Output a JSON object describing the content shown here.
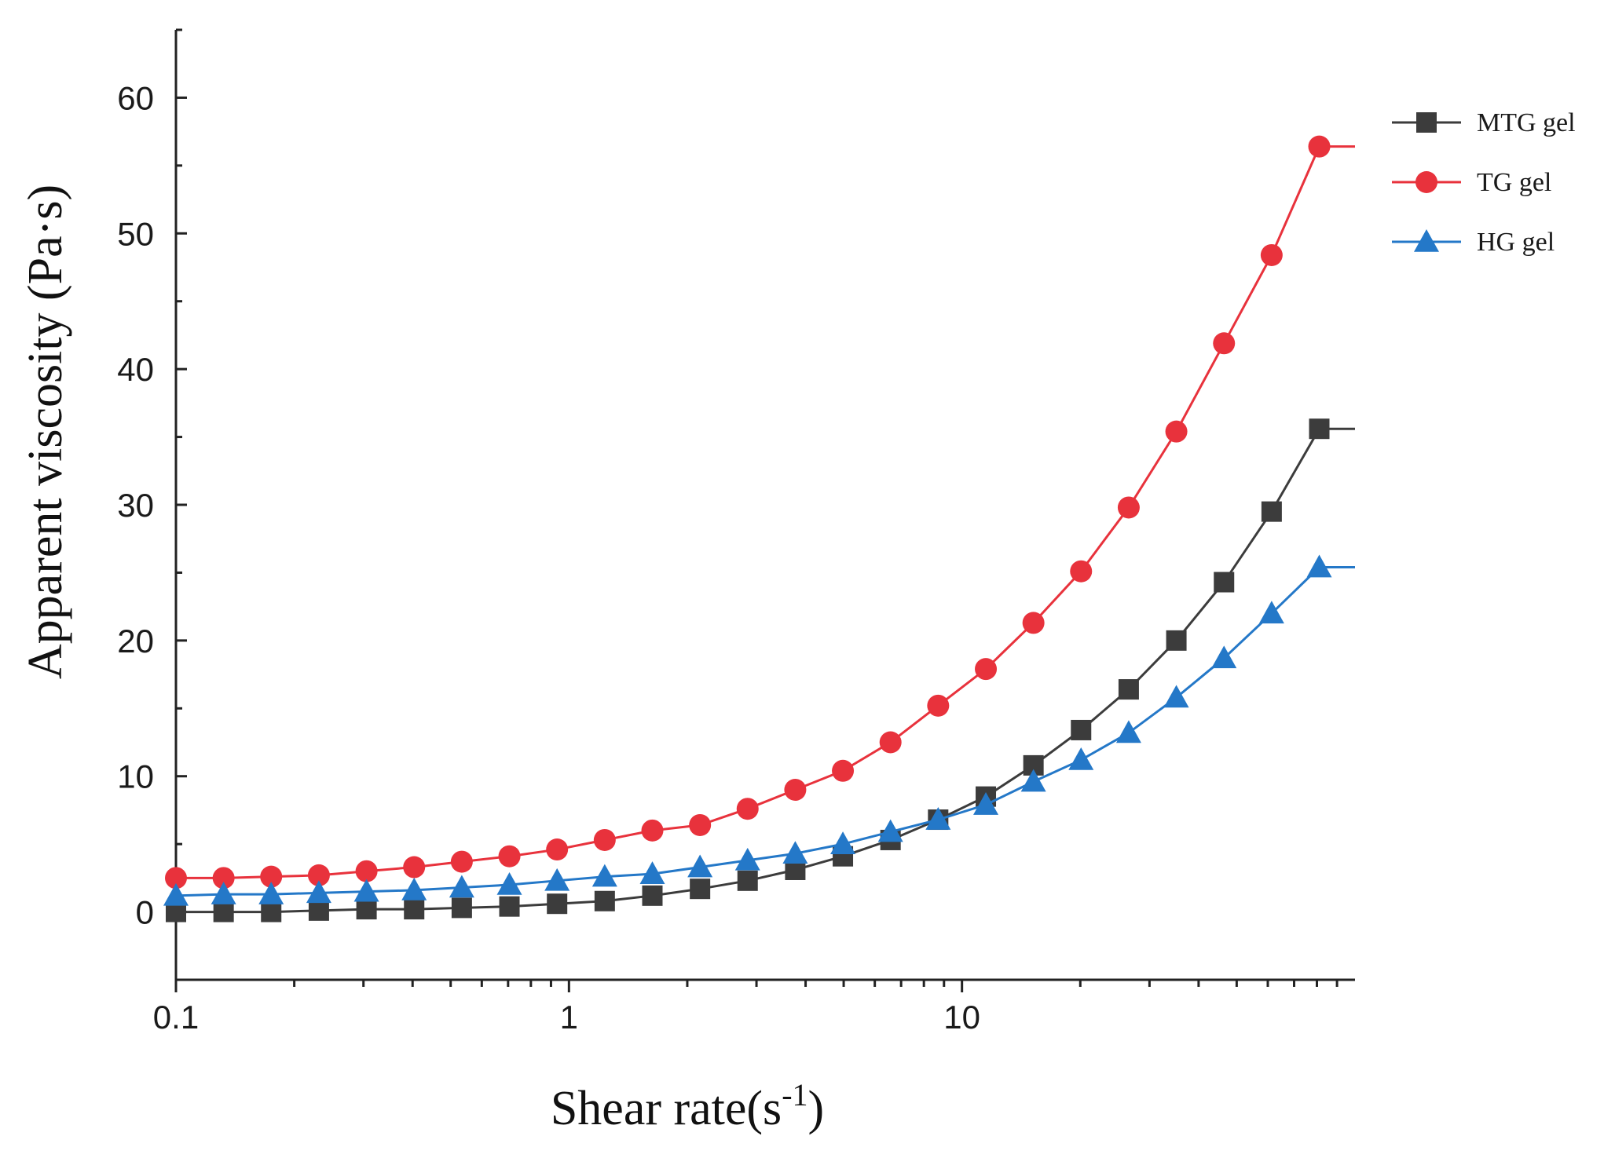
{
  "chart_data": {
    "type": "line",
    "title": "",
    "xlabel": "Shear rate(s",
    "xlabel_sup": "-1",
    "xlabel_close": ")",
    "ylabel": "Apparent viscosity (Pa·s)",
    "xscale": "log",
    "xlim": [
      0.1,
      100
    ],
    "ylim": [
      -5,
      65
    ],
    "x_ticks": [
      0.1,
      1,
      10
    ],
    "x_tick_labels": [
      "0.1",
      "1",
      "10"
    ],
    "y_ticks": [
      0,
      10,
      20,
      30,
      40,
      50,
      60
    ],
    "y_tick_labels": [
      "0",
      "10",
      "20",
      "30",
      "40",
      "50",
      "60"
    ],
    "legend_position": "top-right",
    "x": [
      0.1,
      0.1322,
      0.1747,
      0.231,
      0.3054,
      0.4037,
      0.5337,
      0.7055,
      0.9327,
      1.233,
      1.63,
      2.155,
      2.848,
      3.765,
      4.977,
      6.579,
      8.697,
      11.5,
      15.2,
      20.09,
      26.56,
      35.11,
      46.42,
      61.36,
      81.11,
      100
    ],
    "series": [
      {
        "name": "MTG gel",
        "color": "#3c3c3c",
        "marker": "square",
        "values": [
          0.0,
          0.0,
          0.0,
          0.1,
          0.2,
          0.2,
          0.3,
          0.4,
          0.6,
          0.8,
          1.2,
          1.7,
          2.3,
          3.1,
          4.1,
          5.3,
          6.8,
          8.5,
          10.8,
          13.4,
          16.4,
          20.0,
          24.3,
          29.5,
          35.6,
          35.6
        ]
      },
      {
        "name": "TG gel",
        "color": "#e8323c",
        "marker": "circle",
        "values": [
          2.5,
          2.5,
          2.6,
          2.7,
          3.0,
          3.3,
          3.7,
          4.1,
          4.6,
          5.3,
          6.0,
          6.4,
          7.6,
          9.0,
          10.4,
          12.5,
          15.2,
          17.9,
          21.3,
          25.1,
          29.8,
          35.4,
          41.9,
          48.4,
          56.4,
          56.4
        ]
      },
      {
        "name": "HG gel",
        "color": "#2478c8",
        "marker": "triangle",
        "values": [
          1.2,
          1.3,
          1.3,
          1.4,
          1.5,
          1.6,
          1.8,
          2.0,
          2.3,
          2.6,
          2.8,
          3.3,
          3.8,
          4.3,
          5.0,
          5.9,
          6.8,
          7.9,
          9.6,
          11.2,
          13.2,
          15.8,
          18.7,
          22.0,
          25.4,
          25.4
        ]
      }
    ]
  }
}
